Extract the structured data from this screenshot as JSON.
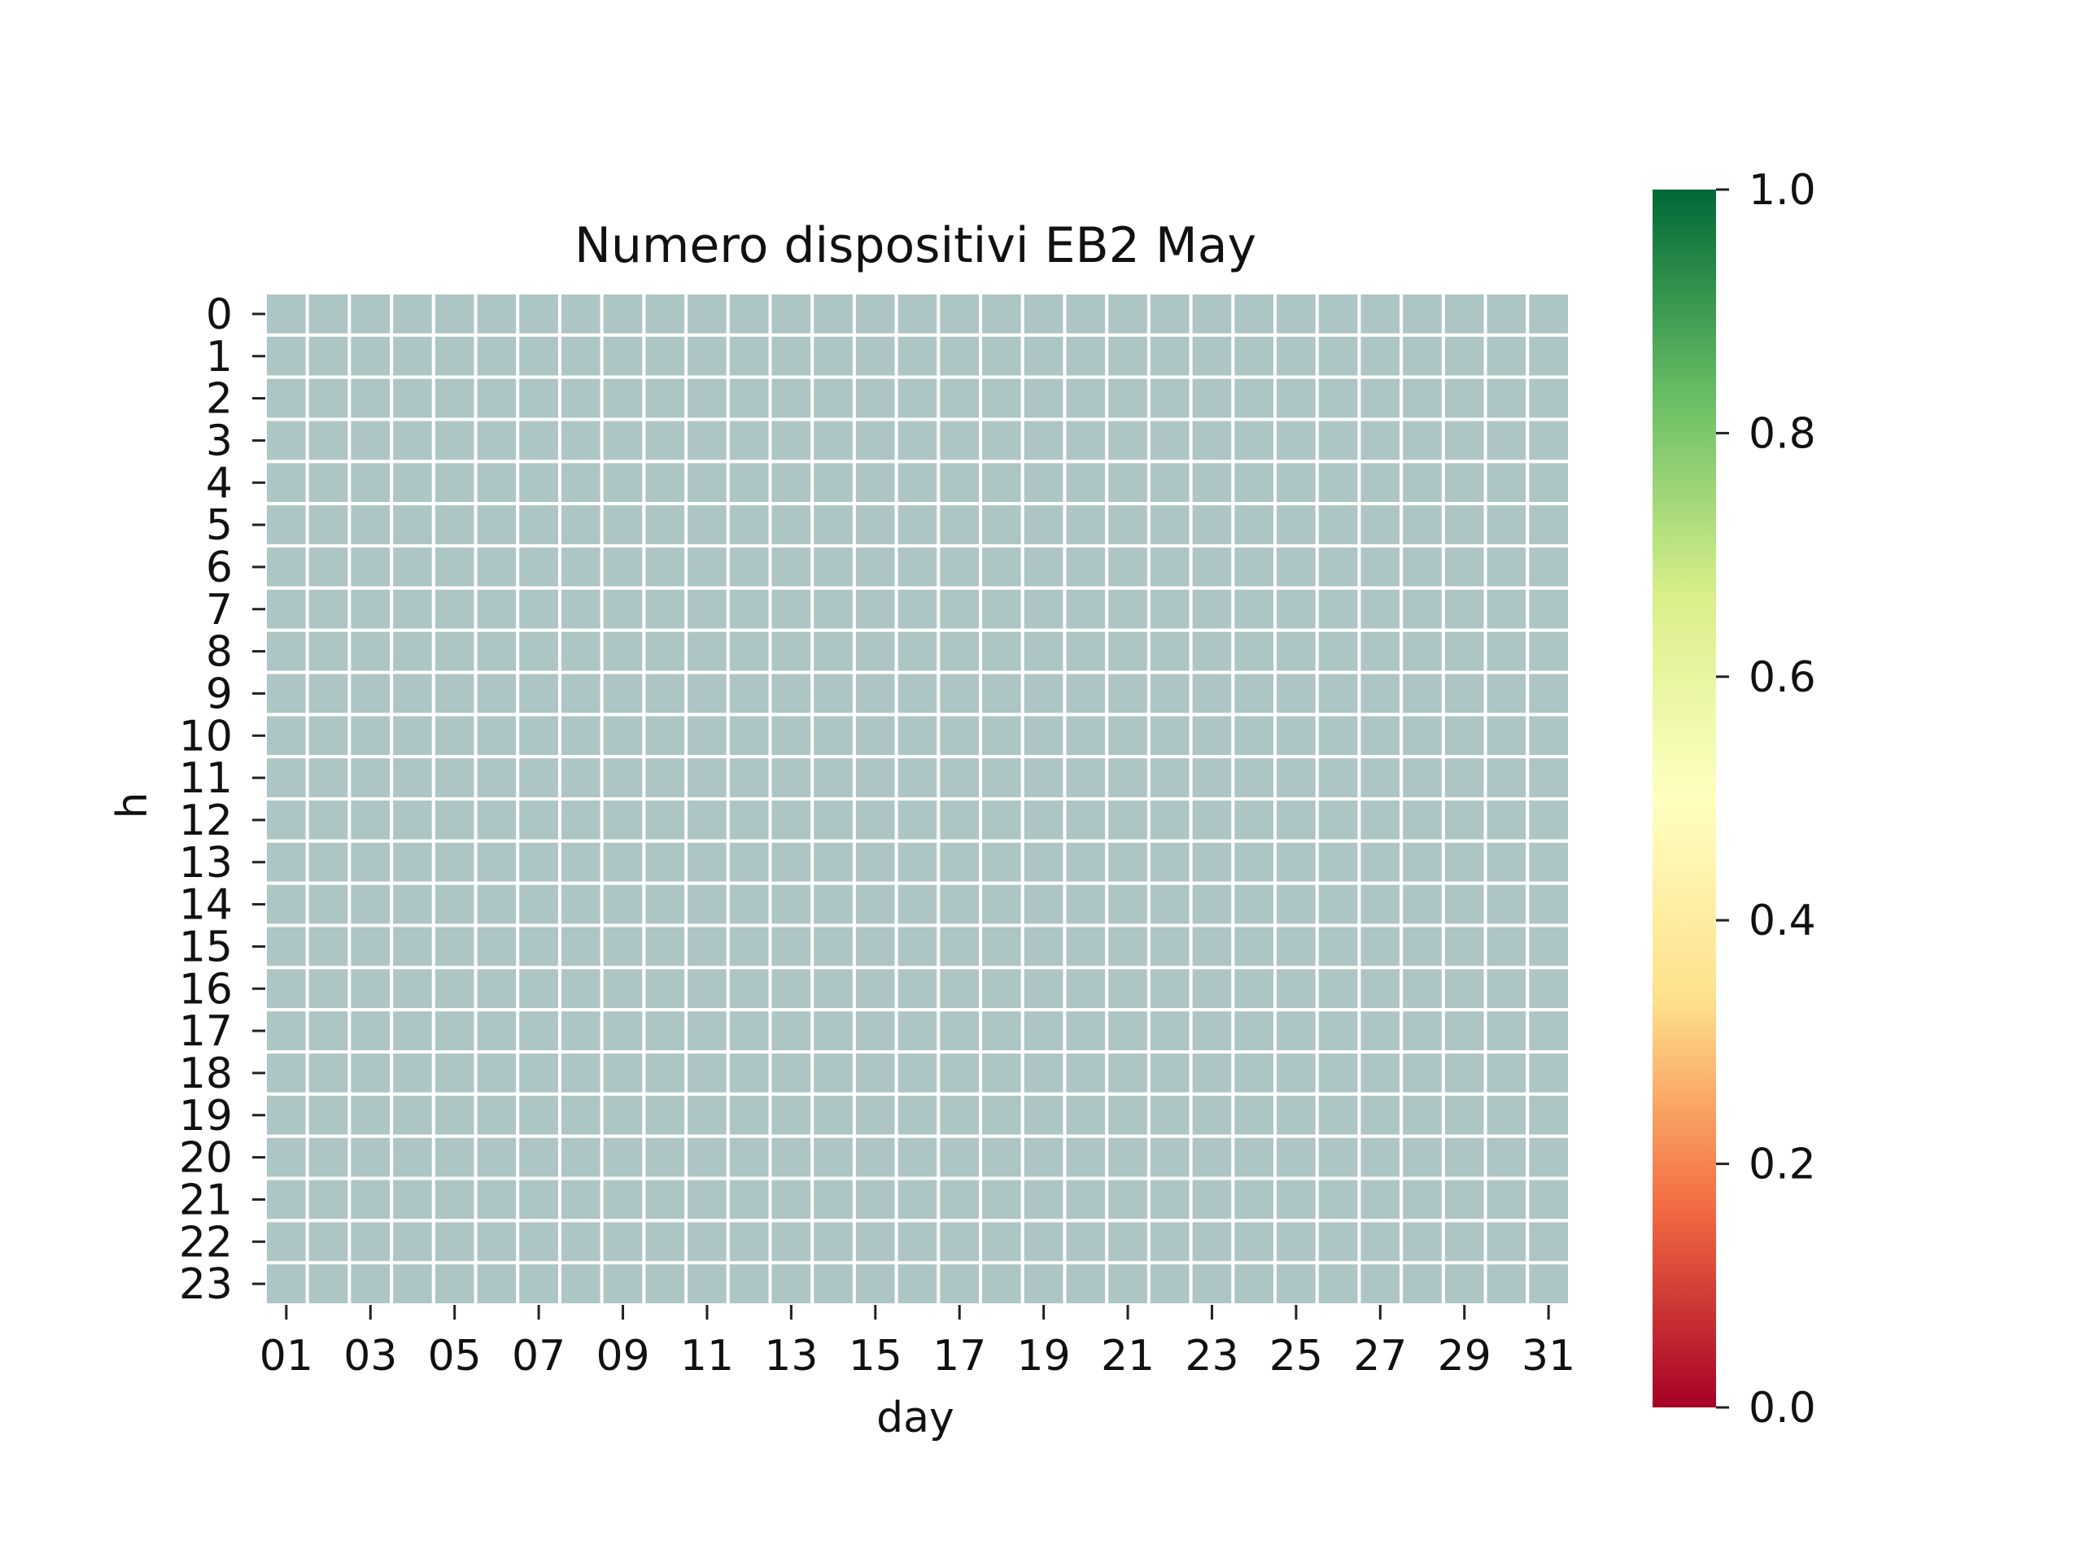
{
  "chart_data": {
    "type": "heatmap",
    "title": "Numero dispositivi EB2 May",
    "xlabel": "day",
    "ylabel": "h",
    "x_categories": [
      "01",
      "02",
      "03",
      "04",
      "05",
      "06",
      "07",
      "08",
      "09",
      "10",
      "11",
      "12",
      "13",
      "14",
      "15",
      "16",
      "17",
      "18",
      "19",
      "20",
      "21",
      "22",
      "23",
      "24",
      "25",
      "26",
      "27",
      "28",
      "29",
      "30",
      "31"
    ],
    "x_tick_labels": [
      "01",
      "03",
      "05",
      "07",
      "09",
      "11",
      "13",
      "15",
      "17",
      "19",
      "21",
      "23",
      "25",
      "27",
      "29",
      "31"
    ],
    "y_categories": [
      "0",
      "1",
      "2",
      "3",
      "4",
      "5",
      "6",
      "7",
      "8",
      "9",
      "10",
      "11",
      "12",
      "13",
      "14",
      "15",
      "16",
      "17",
      "18",
      "19",
      "20",
      "21",
      "22",
      "23"
    ],
    "cell_color": "#adc5c5",
    "cell_values": "all cells empty (no data); every cell shown in uniform grey-teal",
    "colormap": "RdYlGn",
    "colorbar": {
      "range": [
        0.0,
        1.0
      ],
      "ticks": [
        "0.0",
        "0.2",
        "0.4",
        "0.6",
        "0.8",
        "1.0"
      ],
      "colors": [
        "#a50026",
        "#f46d43",
        "#fee08b",
        "#ffffbf",
        "#d9ef8b",
        "#66bd63",
        "#006837"
      ]
    },
    "grid": true
  }
}
